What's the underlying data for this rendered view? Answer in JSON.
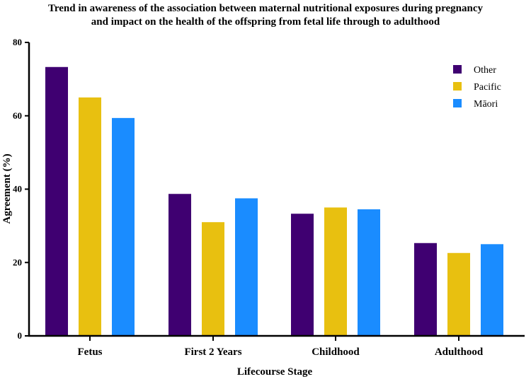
{
  "chart_data": {
    "type": "bar",
    "title_lines": [
      "Trend in awareness of the association between maternal nutritional exposures during pregnancy",
      "and impact on the health of the offspring from fetal life through to adulthood"
    ],
    "xlabel": "Lifecourse  Stage",
    "ylabel": "Agreement (%)",
    "ylim": [
      0,
      80
    ],
    "yticks": [
      0,
      20,
      40,
      60,
      80
    ],
    "categories": [
      "Fetus",
      "First 2 Years",
      "Childhood",
      "Adulthood"
    ],
    "series": [
      {
        "name": "Other",
        "color": "#3f0071",
        "values": [
          73.3,
          38.7,
          33.3,
          25.3
        ]
      },
      {
        "name": "Pacific",
        "color": "#e8c010",
        "values": [
          65.0,
          31.0,
          35.0,
          22.6
        ]
      },
      {
        "name": "Māori",
        "color": "#1a8cff",
        "values": [
          59.4,
          37.5,
          34.5,
          25.0
        ]
      }
    ],
    "legend_position": "top-right",
    "grid": false
  }
}
